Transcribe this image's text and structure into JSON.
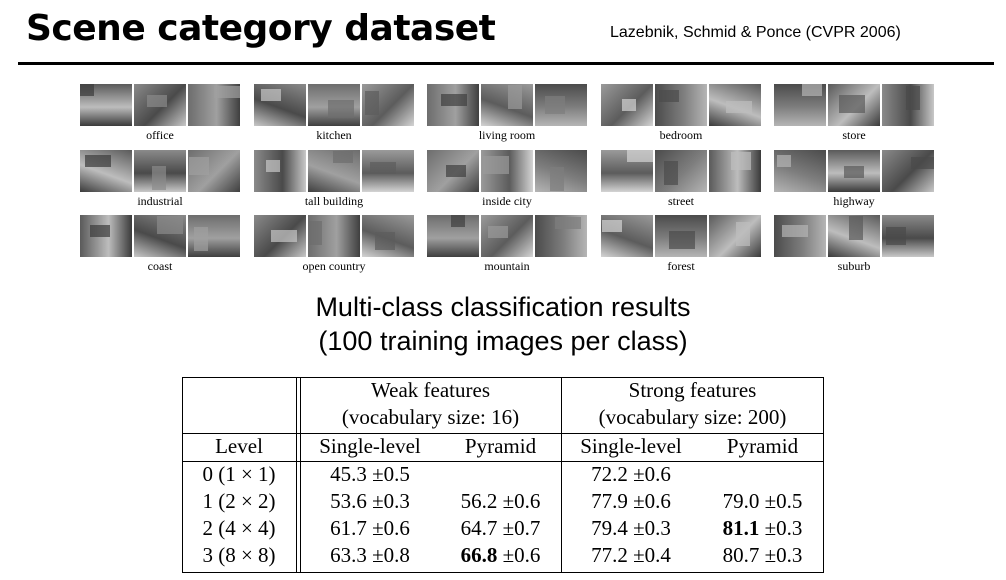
{
  "header": {
    "title": "Scene category dataset",
    "citation": "Lazebnik, Schmid & Ponce (CVPR 2006)"
  },
  "categories": [
    {
      "label": "office"
    },
    {
      "label": "kitchen"
    },
    {
      "label": "living room"
    },
    {
      "label": "bedroom"
    },
    {
      "label": "store"
    },
    {
      "label": "industrial"
    },
    {
      "label": "tall building"
    },
    {
      "label": "inside city"
    },
    {
      "label": "street"
    },
    {
      "label": "highway"
    },
    {
      "label": "coast"
    },
    {
      "label": "open country"
    },
    {
      "label": "mountain"
    },
    {
      "label": "forest"
    },
    {
      "label": "suburb"
    }
  ],
  "results": {
    "heading_line1": "Multi-class classification results",
    "heading_line2": "(100 training images per class)",
    "weak_header": "Weak features",
    "weak_vocab": "(vocabulary size: 16)",
    "strong_header": "Strong features",
    "strong_vocab": "(vocabulary size: 200)",
    "col_level": "Level",
    "col_single": "Single-level",
    "col_pyramid": "Pyramid",
    "rows": [
      {
        "level": "0 (1 × 1)",
        "weak_single": "45.3 ±0.5",
        "weak_pyramid": "",
        "strong_single": "72.2 ±0.6",
        "strong_pyramid": ""
      },
      {
        "level": "1 (2 × 2)",
        "weak_single": "53.6 ±0.3",
        "weak_pyramid": "56.2 ±0.6",
        "strong_single": "77.9 ±0.6",
        "strong_pyramid": "79.0 ±0.5"
      },
      {
        "level": "2 (4 × 4)",
        "weak_single": "61.7 ±0.6",
        "weak_pyramid": "64.7 ±0.7",
        "strong_single": "79.4 ±0.3",
        "strong_pyramid_bold": "81.1",
        "strong_pyramid_rest": " ±0.3"
      },
      {
        "level": "3 (8 × 8)",
        "weak_single": "63.3 ±0.8",
        "weak_pyramid_bold": "66.8",
        "weak_pyramid_rest": " ±0.6",
        "strong_single": "77.2 ±0.4",
        "strong_pyramid": "80.7 ±0.3"
      }
    ]
  }
}
